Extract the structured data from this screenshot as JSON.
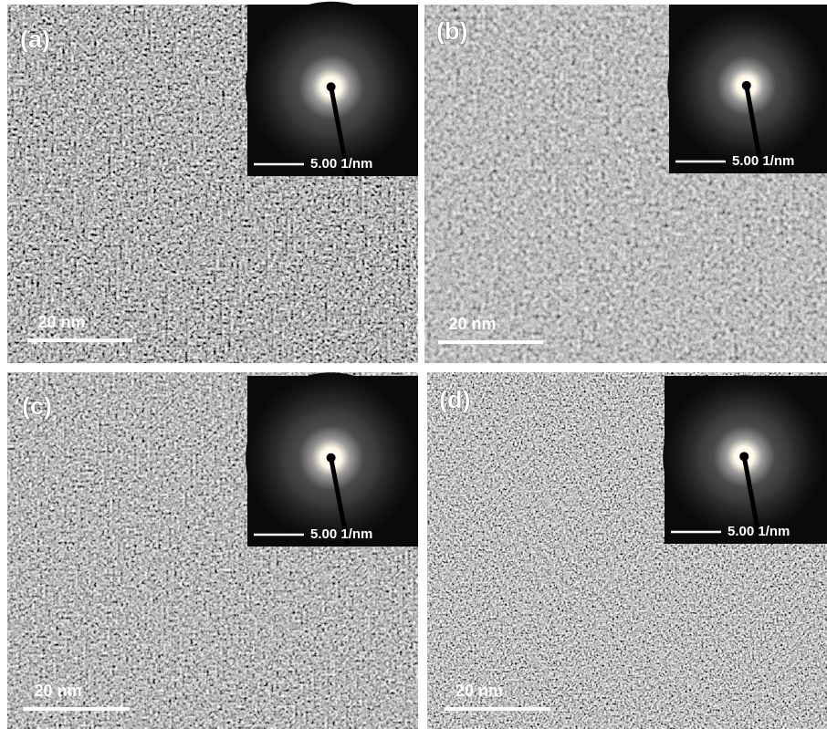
{
  "panels": [
    {
      "label": "(a)",
      "scale_bar": "20 nm",
      "inset_scale_bar": "5.00 1/nm"
    },
    {
      "label": "(b)",
      "scale_bar": "20 nm",
      "inset_scale_bar": "5.00 1/nm"
    },
    {
      "label": "(c)",
      "scale_bar": "20 nm",
      "inset_scale_bar": "5.00 1/nm"
    },
    {
      "label": "(d)",
      "scale_bar": "20 nm",
      "inset_scale_bar": "5.00 1/nm"
    }
  ]
}
